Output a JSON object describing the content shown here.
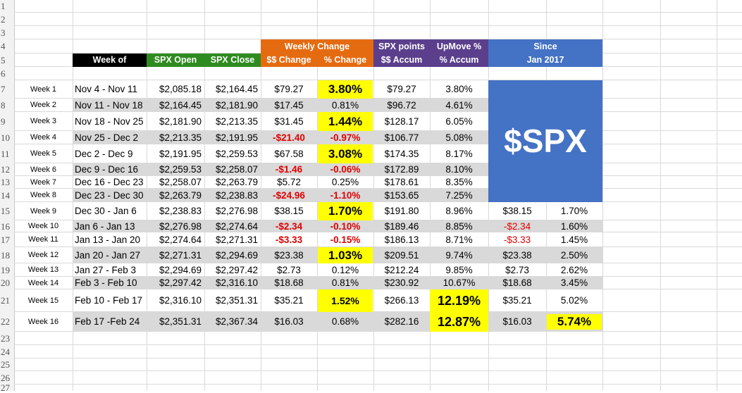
{
  "row_numbers": [
    "1",
    "2",
    "3",
    "4",
    "5",
    "6",
    "7",
    "8",
    "9",
    "10",
    "11",
    "12",
    "13",
    "14",
    "15",
    "16",
    "17",
    "18",
    "19",
    "20",
    "21",
    "22",
    "23",
    "24",
    "25",
    "26",
    "27"
  ],
  "headers": {
    "week_of": "Week of",
    "spx_open": "SPX Open",
    "spx_close": "SPX Close",
    "weekly_change": "Weekly Change",
    "dollar_change": "$$ Change",
    "pct_change": "% Change",
    "spx_points": "SPX points",
    "dollar_accum": "$$ Accum",
    "upmove": "UpMove %",
    "pct_accum": "% Accum",
    "since": "Since",
    "since_year": "Jan 2017"
  },
  "logo_text": "$SPX",
  "colors": {
    "black": "#000000",
    "green": "#2e8b1f",
    "orange": "#e56b10",
    "purple": "#5b3f8c",
    "blue": "#4472c4",
    "highlight": "#ffff00",
    "negative": "#e00000",
    "stripe": "#d9d9d9"
  },
  "weeks": [
    {
      "label": "Week 1",
      "range": "Nov 4 - Nov 11",
      "open": "$2,085.18",
      "close": "$2,164.45",
      "chg": "$79.27",
      "pct": "3.80%",
      "accum": "$79.27",
      "up": "3.80%",
      "since": "",
      "since_pct": ""
    },
    {
      "label": "Week 2",
      "range": "Nov 11 - Nov 18",
      "open": "$2,164.45",
      "close": "$2,181.90",
      "chg": "$17.45",
      "pct": "0.81%",
      "accum": "$96.72",
      "up": "4.61%",
      "since": "",
      "since_pct": ""
    },
    {
      "label": "Week 3",
      "range": "Nov 18 - Nov 25",
      "open": "$2,181.90",
      "close": "$2,213.35",
      "chg": "$31.45",
      "pct": "1.44%",
      "accum": "$128.17",
      "up": "6.05%",
      "since": "",
      "since_pct": ""
    },
    {
      "label": "Week 4",
      "range": "Nov 25 - Dec 2",
      "open": "$2,213.35",
      "close": "$2,191.95",
      "chg": "-$21.40",
      "pct": "-0.97%",
      "accum": "$106.77",
      "up": "5.08%",
      "since": "",
      "since_pct": ""
    },
    {
      "label": "Week 5",
      "range": "Dec 2 - Dec 9",
      "open": "$2,191.95",
      "close": "$2,259.53",
      "chg": "$67.58",
      "pct": "3.08%",
      "accum": "$174.35",
      "up": "8.17%",
      "since": "",
      "since_pct": ""
    },
    {
      "label": "Week 6",
      "range": "Dec 9 - Dec 16",
      "open": "$2,259.53",
      "close": "$2,258.07",
      "chg": "-$1.46",
      "pct": "-0.06%",
      "accum": "$172.89",
      "up": "8.10%",
      "since": "",
      "since_pct": ""
    },
    {
      "label": "Week 7",
      "range": "Dec 16 - Dec 23",
      "open": "$2,258.07",
      "close": "$2,263.79",
      "chg": "$5.72",
      "pct": "0.25%",
      "accum": "$178.61",
      "up": "8.35%",
      "since": "",
      "since_pct": ""
    },
    {
      "label": "Week 8",
      "range": "Dec 23 - Dec 30",
      "open": "$2,263.79",
      "close": "$2,238.83",
      "chg": "-$24.96",
      "pct": "-1.10%",
      "accum": "$153.65",
      "up": "7.25%",
      "since": "",
      "since_pct": ""
    },
    {
      "label": "Week 9",
      "range": "Dec 30 - Jan 6",
      "open": "$2,238.83",
      "close": "$2,276.98",
      "chg": "$38.15",
      "pct": "1.70%",
      "accum": "$191.80",
      "up": "8.96%",
      "since": "$38.15",
      "since_pct": "1.70%"
    },
    {
      "label": "Week 10",
      "range": "Jan 6 - Jan 13",
      "open": "$2,276.98",
      "close": "$2,274.64",
      "chg": "-$2.34",
      "pct": "-0.10%",
      "accum": "$189.46",
      "up": "8.85%",
      "since": "-$2.34",
      "since_pct": "1.60%"
    },
    {
      "label": "Week 11",
      "range": "Jan 13 - Jan 20",
      "open": "$2,274.64",
      "close": "$2,271.31",
      "chg": "-$3.33",
      "pct": "-0.15%",
      "accum": "$186.13",
      "up": "8.71%",
      "since": "-$3.33",
      "since_pct": "1.45%"
    },
    {
      "label": "Week 12",
      "range": "Jan 20 - Jan 27",
      "open": "$2,271.31",
      "close": "$2,294.69",
      "chg": "$23.38",
      "pct": "1.03%",
      "accum": "$209.51",
      "up": "9.74%",
      "since": "$23.38",
      "since_pct": "2.50%"
    },
    {
      "label": "Week 13",
      "range": "Jan 27 - Feb 3",
      "open": "$2,294.69",
      "close": "$2,297.42",
      "chg": "$2.73",
      "pct": "0.12%",
      "accum": "$212.24",
      "up": "9.85%",
      "since": "$2.73",
      "since_pct": "2.62%"
    },
    {
      "label": "Week 14",
      "range": "Feb 3 - Feb 10",
      "open": "$2,297.42",
      "close": "$2,316.10",
      "chg": "$18.68",
      "pct": "0.81%",
      "accum": "$230.92",
      "up": "10.67%",
      "since": "$18.68",
      "since_pct": "3.45%"
    },
    {
      "label": "Week 15",
      "range": "Feb 10 - Feb 17",
      "open": "$2,316.10",
      "close": "$2,351.31",
      "chg": "$35.21",
      "pct": "1.52%",
      "accum": "$266.13",
      "up": "12.19%",
      "since": "$35.21",
      "since_pct": "5.02%"
    },
    {
      "label": "Week 16",
      "range": "Feb 17 -Feb 24",
      "open": "$2,351.31",
      "close": "$2,367.34",
      "chg": "$16.03",
      "pct": "0.68%",
      "accum": "$282.16",
      "up": "12.87%",
      "since": "$16.03",
      "since_pct": "5.74%"
    }
  ]
}
